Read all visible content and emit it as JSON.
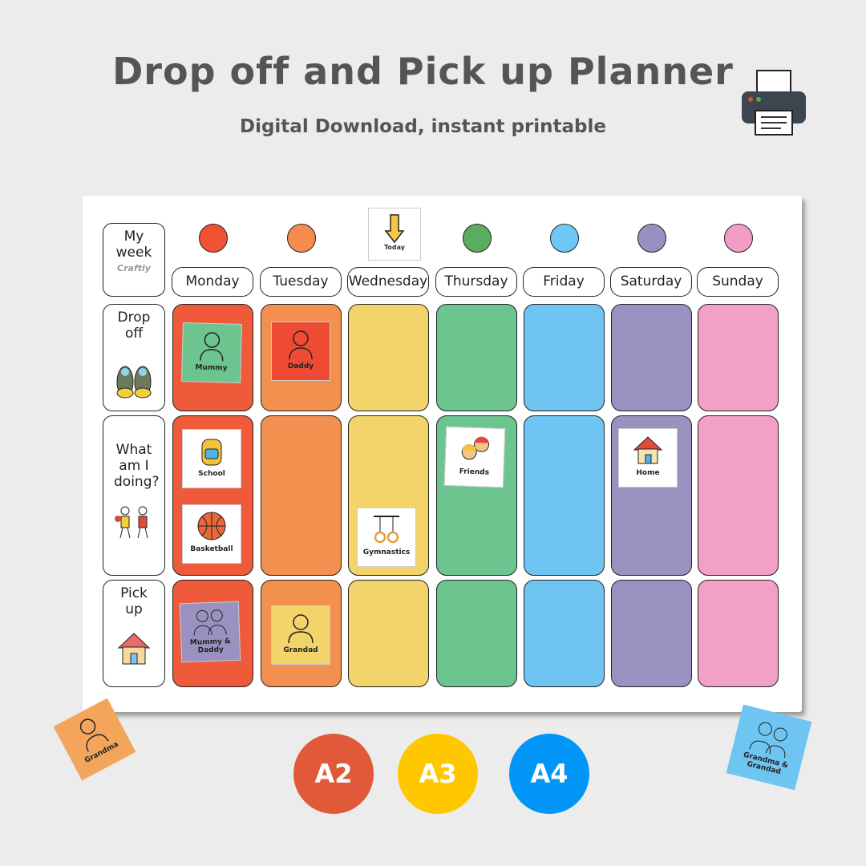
{
  "title": "Drop off and Pick up Planner",
  "subtitle": "Digital Download, instant printable",
  "icons": {
    "printer": "printer-icon"
  },
  "planner": {
    "corner_label": "My week",
    "logo_text": "Craftly",
    "today_label": "Today",
    "rows": [
      "Drop off",
      "What am I doing?",
      "Pick up"
    ],
    "days": [
      {
        "name": "Monday",
        "color": "#ee5a3a",
        "dot": "#ef5235"
      },
      {
        "name": "Tuesday",
        "color": "#f4904f",
        "dot": "#f58b4c"
      },
      {
        "name": "Wednesday",
        "color": "#f2d46a",
        "dot": null
      },
      {
        "name": "Thursday",
        "color": "#6cc48f",
        "dot": "#5aac5f"
      },
      {
        "name": "Friday",
        "color": "#6ec5f2",
        "dot": "#6ec8f5"
      },
      {
        "name": "Saturday",
        "color": "#9b91c0",
        "dot": "#9a8fc1"
      },
      {
        "name": "Sunday",
        "color": "#f3a0c6",
        "dot": "#f39cc6"
      }
    ],
    "cards": {
      "mummy": "Mummy",
      "daddy": "Daddy",
      "school": "School",
      "basketball": "Basketball",
      "gymnastics": "Gymnastics",
      "friends": "Friends",
      "home": "Home",
      "mummy_daddy": "Mummy & Daddy",
      "grandad": "Grandad"
    }
  },
  "loose_cards": {
    "grandma": "Grandma",
    "grandma_grandad": "Grandma & Grandad"
  },
  "sizes": [
    {
      "label": "A2",
      "color": "#e05a3a"
    },
    {
      "label": "A3",
      "color": "#ffc700"
    },
    {
      "label": "A4",
      "color": "#0095f7"
    }
  ]
}
